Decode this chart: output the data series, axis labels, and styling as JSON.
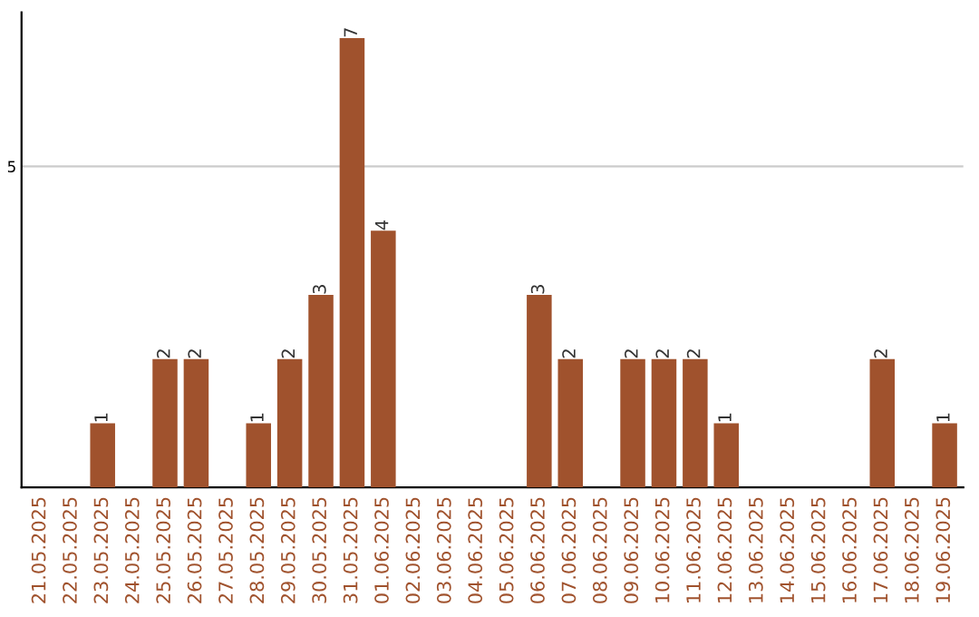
{
  "chart_data": {
    "type": "bar",
    "categories": [
      "21.05.2025",
      "22.05.2025",
      "23.05.2025",
      "24.05.2025",
      "25.05.2025",
      "26.05.2025",
      "27.05.2025",
      "28.05.2025",
      "29.05.2025",
      "30.05.2025",
      "31.05.2025",
      "01.06.2025",
      "02.06.2025",
      "03.06.2025",
      "04.06.2025",
      "05.06.2025",
      "06.06.2025",
      "07.06.2025",
      "08.06.2025",
      "09.06.2025",
      "10.06.2025",
      "11.06.2025",
      "12.06.2025",
      "13.06.2025",
      "14.06.2025",
      "15.06.2025",
      "16.06.2025",
      "17.06.2025",
      "18.06.2025",
      "19.06.2025"
    ],
    "values": [
      0,
      0,
      1,
      0,
      2,
      2,
      0,
      1,
      2,
      3,
      7,
      4,
      0,
      0,
      0,
      0,
      3,
      2,
      0,
      2,
      2,
      2,
      1,
      0,
      0,
      0,
      0,
      2,
      0,
      1
    ],
    "value_labels": [
      null,
      null,
      "1",
      null,
      "2",
      "2",
      null,
      "1",
      "2",
      "3",
      "7",
      "4",
      null,
      null,
      null,
      null,
      "3",
      "2",
      null,
      "2",
      "2",
      "2",
      "1",
      null,
      null,
      null,
      null,
      "2",
      null,
      "1"
    ],
    "color": "#a0522d",
    "ylim": [
      0,
      7.4
    ],
    "yticks": [
      5
    ],
    "grid": "y"
  }
}
